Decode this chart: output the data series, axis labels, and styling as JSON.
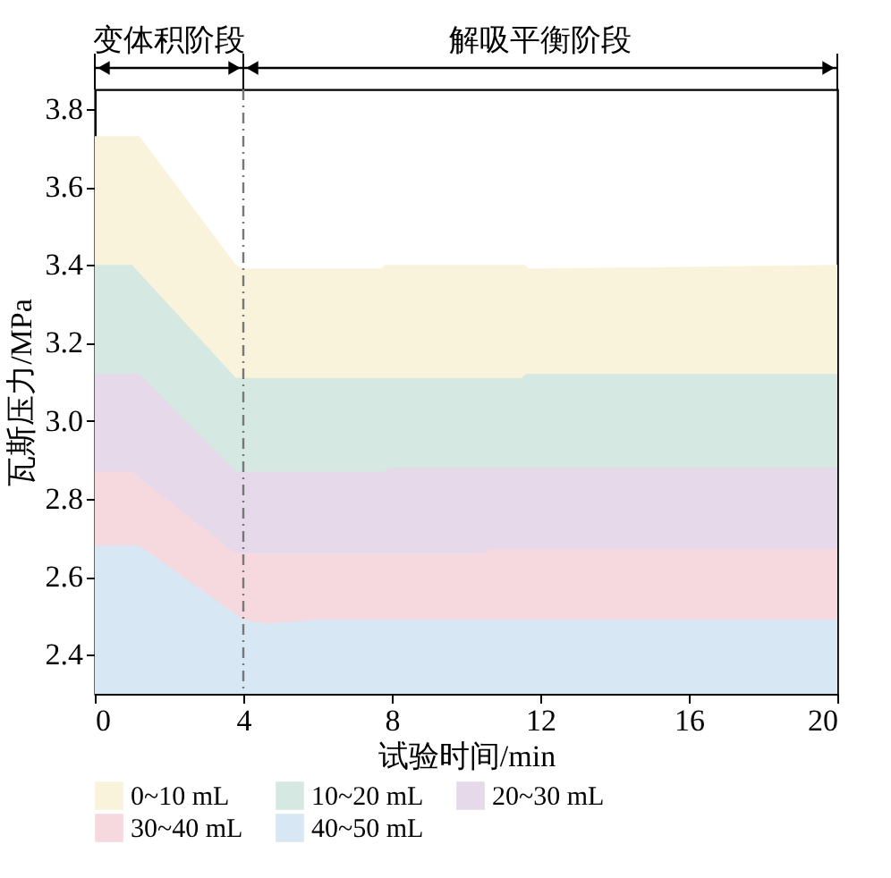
{
  "chart_data": {
    "type": "area",
    "xlabel": "试验时间/min",
    "ylabel": "瓦斯压力/MPa",
    "annotations": [
      "变体积阶段",
      "解吸平衡阶段"
    ],
    "xlim": [
      0,
      20
    ],
    "xticks": [
      0,
      4,
      8,
      12,
      16,
      20
    ],
    "ylim": [
      2.3,
      3.85
    ],
    "yticks": [
      2.4,
      2.6,
      2.8,
      {
        "value": 3.0,
        "label": "3.0"
      },
      3.2,
      3.4,
      3.6,
      3.8
    ],
    "grid": false,
    "legend": "bottom",
    "ref_lines": [
      {
        "axis": "x",
        "value": 4,
        "color": "#777777",
        "line_style": "dashed"
      }
    ],
    "series": [
      {
        "name": "0~10 mL",
        "color": "#faf3dc",
        "x": [
          0,
          1.2,
          3.8,
          4,
          7.7,
          7.8,
          11.6,
          11.7,
          20
        ],
        "values": [
          3.73,
          3.73,
          3.4,
          3.39,
          3.39,
          3.4,
          3.4,
          3.39,
          3.4
        ]
      },
      {
        "name": "10~20 mL",
        "color": "#d5e9e2",
        "x": [
          0,
          1,
          3.8,
          4.5,
          11.5,
          11.6,
          20
        ],
        "values": [
          3.4,
          3.4,
          3.11,
          3.11,
          3.11,
          3.12,
          3.12
        ]
      },
      {
        "name": "20~30 mL",
        "color": "#e6d9ea",
        "x": [
          0,
          1.2,
          3.8,
          7.8,
          7.9,
          20
        ],
        "values": [
          3.12,
          3.12,
          2.87,
          2.87,
          2.88,
          2.88
        ]
      },
      {
        "name": "30~40 mL",
        "color": "#f6d9de",
        "x": [
          0,
          1,
          3.8,
          10.5,
          10.6,
          20
        ],
        "values": [
          2.87,
          2.87,
          2.66,
          2.66,
          2.67,
          2.67
        ]
      },
      {
        "name": "40~50 mL",
        "color": "#d7e8f4",
        "x": [
          0,
          1.2,
          4,
          4.6,
          6,
          20
        ],
        "values": [
          2.68,
          2.68,
          2.49,
          2.48,
          2.49,
          2.49
        ]
      }
    ]
  }
}
